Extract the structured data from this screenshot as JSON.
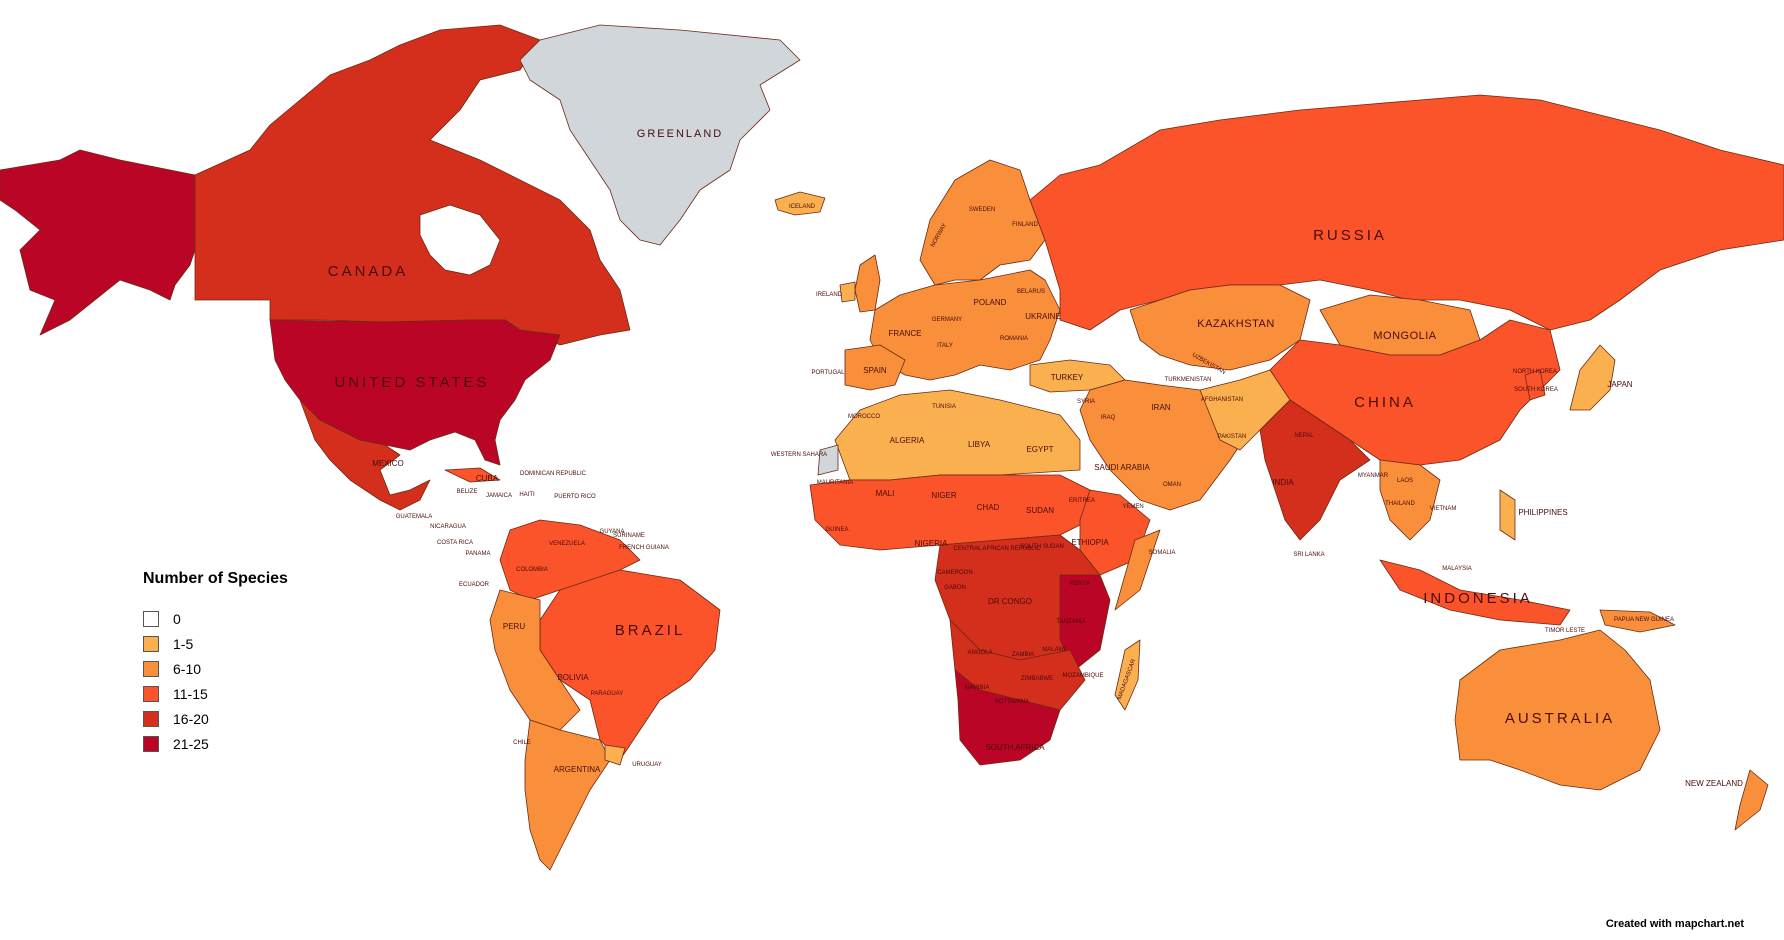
{
  "legend": {
    "title": "Number of Species",
    "items": [
      {
        "label": "0",
        "color": "#ffffff"
      },
      {
        "label": "1-5",
        "color": "#fbb050"
      },
      {
        "label": "6-10",
        "color": "#f98f3b"
      },
      {
        "label": "11-15",
        "color": "#fb532a"
      },
      {
        "label": "16-20",
        "color": "#d42e1c"
      },
      {
        "label": "21-25",
        "color": "#bb0526"
      }
    ]
  },
  "no_data_color": "#d0d6d9",
  "credit": "Created with mapchart.net",
  "labels": {
    "greenland": "GREENLAND",
    "canada": "CANADA",
    "united_states": "UNITED STATES",
    "mexico": "MEXICO",
    "cuba": "CUBA",
    "russia": "RUSSIA",
    "china": "CHINA",
    "kazakhstan": "KAZAKHSTAN",
    "mongolia": "MONGOLIA",
    "india": "INDIA",
    "brazil": "BRAZIL",
    "australia": "AUSTRALIA",
    "indonesia": "INDONESIA",
    "iceland": "ICELAND",
    "sweden": "SWEDEN",
    "finland": "FINLAND",
    "norway": "NORWAY",
    "ireland": "IRELAND",
    "france": "FRANCE",
    "spain": "SPAIN",
    "portugal": "PORTUGAL",
    "germany": "GERMANY",
    "poland": "POLAND",
    "ukraine": "UKRAINE",
    "belarus": "BELARUS",
    "romania": "ROMANIA",
    "italy": "ITALY",
    "turkey": "TURKEY",
    "syria": "SYRIA",
    "iraq": "IRAQ",
    "iran": "IRAN",
    "afghanistan": "AFGHANISTAN",
    "pakistan": "PAKISTAN",
    "uzbekistan": "UZBEKISTAN",
    "turkmenistan": "TURKMENISTAN",
    "saudi_arabia": "SAUDI ARABIA",
    "yemen": "YEMEN",
    "oman": "OMAN",
    "morocco": "MOROCCO",
    "algeria": "ALGERIA",
    "tunisia": "TUNISIA",
    "libya": "LIBYA",
    "egypt": "EGYPT",
    "western_sahara": "WESTERN SAHARA",
    "mauritania": "MAURITANIA",
    "mali": "MALI",
    "niger": "NIGER",
    "chad": "CHAD",
    "sudan": "SUDAN",
    "south_sudan": "SOUTH SUDAN",
    "eritrea": "ERITREA",
    "ethiopia": "ETHIOPIA",
    "somalia": "SOMALIA",
    "nigeria": "NIGERIA",
    "guinea": "GUINEA",
    "car": "CENTRAL AFRICAN REPUBLIC",
    "cameroon": "CAMEROON",
    "gabon": "GABON",
    "dr_congo": "DR CONGO",
    "kenya": "KENYA",
    "tanzania": "TANZANIA",
    "angola": "ANGOLA",
    "zambia": "ZAMBIA",
    "malawi": "MALAWI",
    "mozambique": "MOZAMBIQUE",
    "zimbabwe": "ZIMBABWE",
    "namibia": "NAMIBIA",
    "botswana": "BOTSWANA",
    "south_africa": "SOUTH AFRICA",
    "madagascar": "MADAGASCAR",
    "colombia": "COLOMBIA",
    "venezuela": "VENEZUELA",
    "ecuador": "ECUADOR",
    "peru": "PERU",
    "bolivia": "BOLIVIA",
    "paraguay": "PARAGUAY",
    "chile": "CHILE",
    "argentina": "ARGENTINA",
    "uruguay": "URUGUAY",
    "guyana": "GUYANA",
    "suriname": "SURINAME",
    "french_guiana": "FRENCH GUIANA",
    "nicaragua": "NICARAGUA",
    "costa_rica": "COSTA RICA",
    "panama": "PANAMA",
    "guatemala": "GUATEMALA",
    "belize": "BELIZE",
    "jamaica": "JAMAICA",
    "haiti": "HAITI",
    "dominican_republic": "DOMINICAN REPUBLIC",
    "puerto_rico": "PUERTO RICO",
    "japan": "JAPAN",
    "north_korea": "NORTH KOREA",
    "south_korea": "SOUTH KOREA",
    "philippines": "PHILIPPINES",
    "vietnam": "VIETNAM",
    "thailand": "THAILAND",
    "myanmar": "MYANMAR",
    "laos": "LAOS",
    "malaysia": "MALAYSIA",
    "sri_lanka": "SRI LANKA",
    "nepal": "NEPAL",
    "papua_new_guinea": "PAPUA NEW GUINEA",
    "new_zealand": "NEW ZEALAND",
    "timor_leste": "TIMOR LESTE"
  }
}
